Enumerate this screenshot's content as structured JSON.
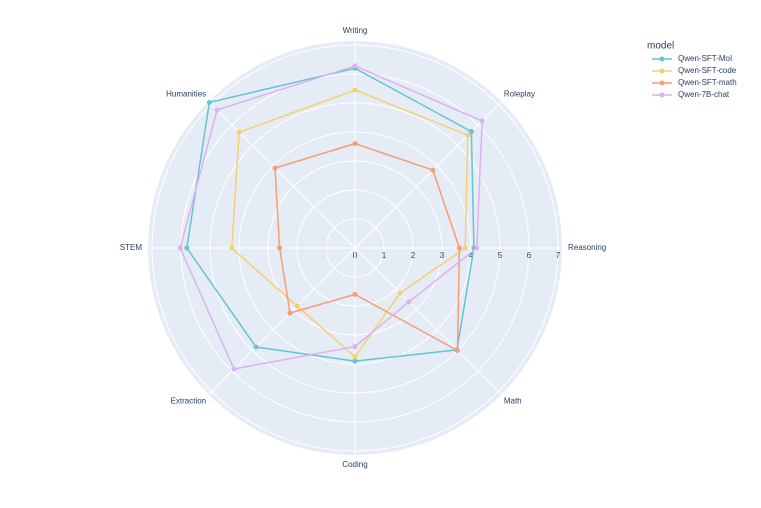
{
  "chart_data": {
    "type": "radar",
    "categories": [
      "Writing",
      "Roleplay",
      "Reasoning",
      "Math",
      "Coding",
      "Extraction",
      "STEM",
      "Humanities"
    ],
    "legend_title": "model",
    "series": [
      {
        "name": "Qwen-SFT-MoI",
        "color": "#66C5CC",
        "values": [
          6.2,
          5.68,
          4.1,
          4.97,
          3.9,
          4.83,
          5.8,
          7.1
        ]
      },
      {
        "name": "Qwen-SFT-code",
        "color": "#F6CF71",
        "values": [
          5.45,
          5.5,
          3.8,
          2.2,
          3.75,
          2.83,
          4.25,
          5.65
        ]
      },
      {
        "name": "Qwen-SFT-math",
        "color": "#F89C74",
        "values": [
          3.6,
          3.8,
          3.6,
          5.0,
          1.6,
          3.17,
          2.6,
          3.9
        ]
      },
      {
        "name": "Qwen-7B-chat",
        "color": "#DCB0F2",
        "values": [
          6.28,
          6.2,
          4.2,
          2.63,
          3.4,
          5.9,
          6.03,
          6.73
        ]
      }
    ],
    "ylim": [
      0,
      7.14
    ],
    "yticks": [
      0,
      1,
      2,
      3,
      4,
      5,
      6,
      7
    ],
    "grid": true,
    "legend_position": "top-right"
  }
}
